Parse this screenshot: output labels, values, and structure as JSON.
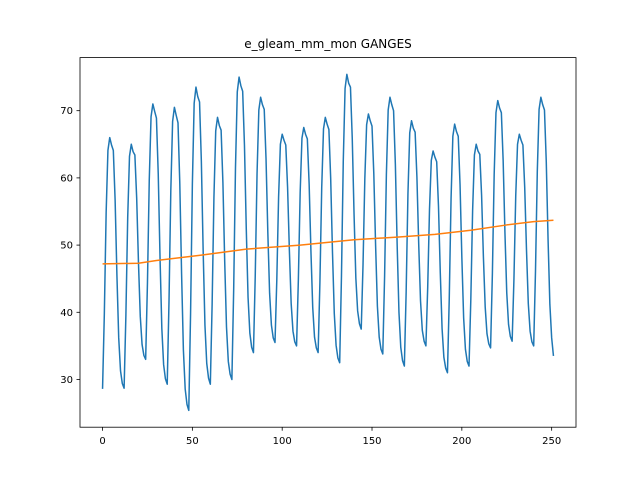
{
  "chart_data": {
    "type": "line",
    "title": "e_gleam_mm_mon GANGES",
    "xlim": [
      -12.55,
      263.55
    ],
    "ylim": [
      22.9,
      77.9
    ],
    "xticks": [
      0,
      50,
      100,
      150,
      200,
      250
    ],
    "yticks": [
      30,
      40,
      50,
      60,
      70
    ],
    "grid": false,
    "series": [
      {
        "color": "#1f77b4",
        "values": [
          28.6,
          39.8,
          54.8,
          64.1,
          66,
          64.9,
          64.1,
          56.7,
          45.5,
          36.2,
          31.3,
          29.4,
          28.7,
          39.6,
          54.1,
          63.2,
          65,
          63.9,
          63.4,
          57,
          47.4,
          39.4,
          35.2,
          33.6,
          33,
          44.4,
          59.6,
          69.1,
          71,
          69.9,
          68.9,
          60.6,
          48.1,
          37.6,
          32.2,
          30.1,
          29.3,
          41.7,
          58.1,
          68.4,
          70.5,
          69.3,
          68.2,
          59.2,
          45.7,
          34.4,
          28.6,
          26.3,
          25.4,
          39.8,
          59.1,
          71.1,
          73.5,
          72.1,
          71.3,
          62.5,
          49.2,
          38.1,
          32.4,
          30.2,
          29.3,
          41.2,
          57.1,
          67,
          69,
          67.8,
          67.1,
          59.3,
          47.6,
          37.8,
          32.7,
          30.8,
          30,
          43.5,
          61.5,
          72.8,
          75,
          73.7,
          72.9,
          64.8,
          52.5,
          42.2,
          36.9,
          34.8,
          34,
          45.4,
          60.6,
          70.1,
          72,
          70.9,
          70.2,
          62.9,
          51.9,
          42.8,
          38.1,
          36.2,
          35.5,
          44.8,
          57.2,
          65,
          66.5,
          65.6,
          64.9,
          58.6,
          49.2,
          41.3,
          37.2,
          35.6,
          35,
          44.8,
          57.8,
          65.9,
          67.5,
          66.5,
          65.8,
          59.1,
          49.1,
          40.7,
          36.3,
          34.7,
          34,
          44.5,
          58.5,
          67.3,
          69,
          68,
          67.2,
          59.9,
          48.9,
          39.8,
          35.1,
          33.2,
          32.5,
          45.4,
          62.5,
          73.3,
          75.4,
          74.1,
          73.5,
          65.9,
          54.6,
          45.1,
          40.2,
          38.3,
          37.5,
          47.1,
          59.9,
          67.9,
          69.5,
          68.5,
          67.7,
          60.6,
          49.9,
          40.9,
          36.3,
          34.5,
          33.8,
          45.3,
          60.5,
          70.1,
          72,
          70.9,
          70,
          62,
          50,
          40,
          34.8,
          32.8,
          32,
          43,
          57.6,
          66.7,
          68.5,
          67.4,
          66.8,
          60.1,
          50.1,
          41.7,
          37.3,
          35.7,
          35,
          43.7,
          55.3,
          62.6,
          64,
          63.1,
          62.4,
          55.8,
          45.9,
          37.6,
          33.3,
          31.7,
          31,
          42.1,
          56.9,
          66.2,
          68,
          66.9,
          66.2,
          59,
          48.2,
          39.2,
          34.5,
          32.7,
          32,
          41.9,
          55.1,
          63.4,
          65,
          64,
          63.5,
          57.4,
          48.3,
          40.8,
          36.8,
          35.3,
          34.7,
          45.7,
          60.5,
          69.7,
          71.5,
          70.4,
          69.7,
          62.6,
          51.8,
          42.9,
          38.2,
          36.4,
          35.7,
          44.9,
          57.3,
          65,
          66.5,
          65.6,
          64.9,
          58.6,
          49.2,
          41.3,
          37.2,
          35.6,
          35,
          46.1,
          60.9,
          70.2,
          72,
          70.9,
          70.1,
          62.4,
          50.8,
          41.2,
          36.2,
          33.5
        ]
      },
      {
        "color": "#ff7f0e",
        "x": [
          0,
          20,
          30,
          55,
          80,
          110,
          140,
          165,
          185,
          205,
          225,
          240,
          251
        ],
        "values": [
          47.2,
          47.3,
          47.7,
          48.5,
          49.4,
          50,
          50.8,
          51.2,
          51.6,
          52.2,
          53,
          53.5,
          53.7
        ]
      }
    ]
  }
}
